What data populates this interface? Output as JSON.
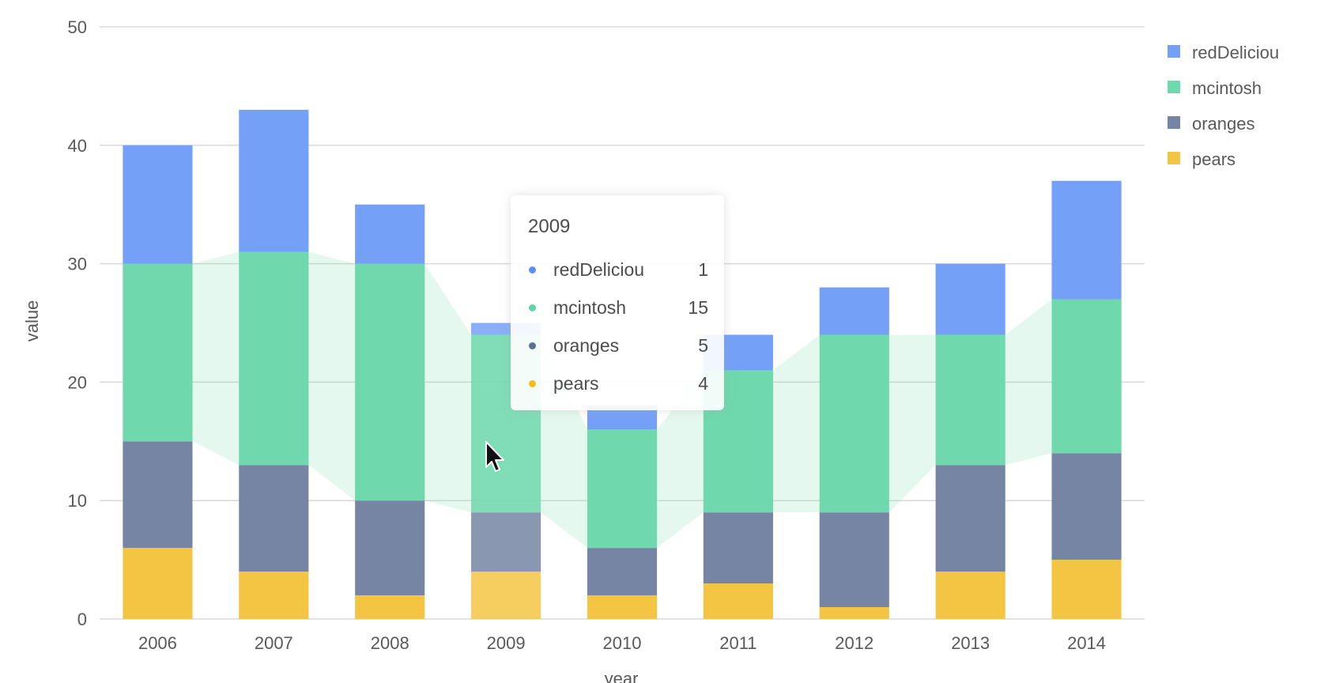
{
  "chart_data": {
    "type": "bar",
    "stacked": true,
    "categories": [
      "2006",
      "2007",
      "2008",
      "2009",
      "2010",
      "2011",
      "2012",
      "2013",
      "2014"
    ],
    "series": [
      {
        "name": "pears",
        "color": "#f4c443",
        "values": [
          6,
          4,
          2,
          4,
          2,
          3,
          1,
          4,
          5
        ]
      },
      {
        "name": "oranges",
        "color": "#7585a3",
        "values": [
          9,
          9,
          8,
          5,
          4,
          6,
          8,
          9,
          9
        ]
      },
      {
        "name": "mcintosh",
        "color": "#6fd8ad",
        "values": [
          15,
          18,
          20,
          15,
          10,
          12,
          15,
          11,
          13
        ]
      },
      {
        "name": "redDeliciou",
        "color": "#75a0f8",
        "values": [
          10,
          12,
          5,
          1,
          2,
          3,
          4,
          6,
          10
        ]
      }
    ],
    "legend_order": [
      "redDeliciou",
      "mcintosh",
      "oranges",
      "pears"
    ],
    "xlabel": "year",
    "ylabel": "value",
    "ylim": [
      0,
      50
    ],
    "yticks": [
      "0",
      "10",
      "20",
      "30",
      "40",
      "50"
    ],
    "grid": true,
    "legend_position": "top-right",
    "highlight_series": "mcintosh",
    "highlight_category": "2009"
  },
  "tooltip": {
    "title": "2009",
    "rows": [
      {
        "name": "redDeliciou",
        "value": "1",
        "color": "#5b8ff9"
      },
      {
        "name": "mcintosh",
        "value": "15",
        "color": "#5ad8a6"
      },
      {
        "name": "oranges",
        "value": "5",
        "color": "#5d7092"
      },
      {
        "name": "pears",
        "value": "4",
        "color": "#f6bd16"
      }
    ]
  }
}
